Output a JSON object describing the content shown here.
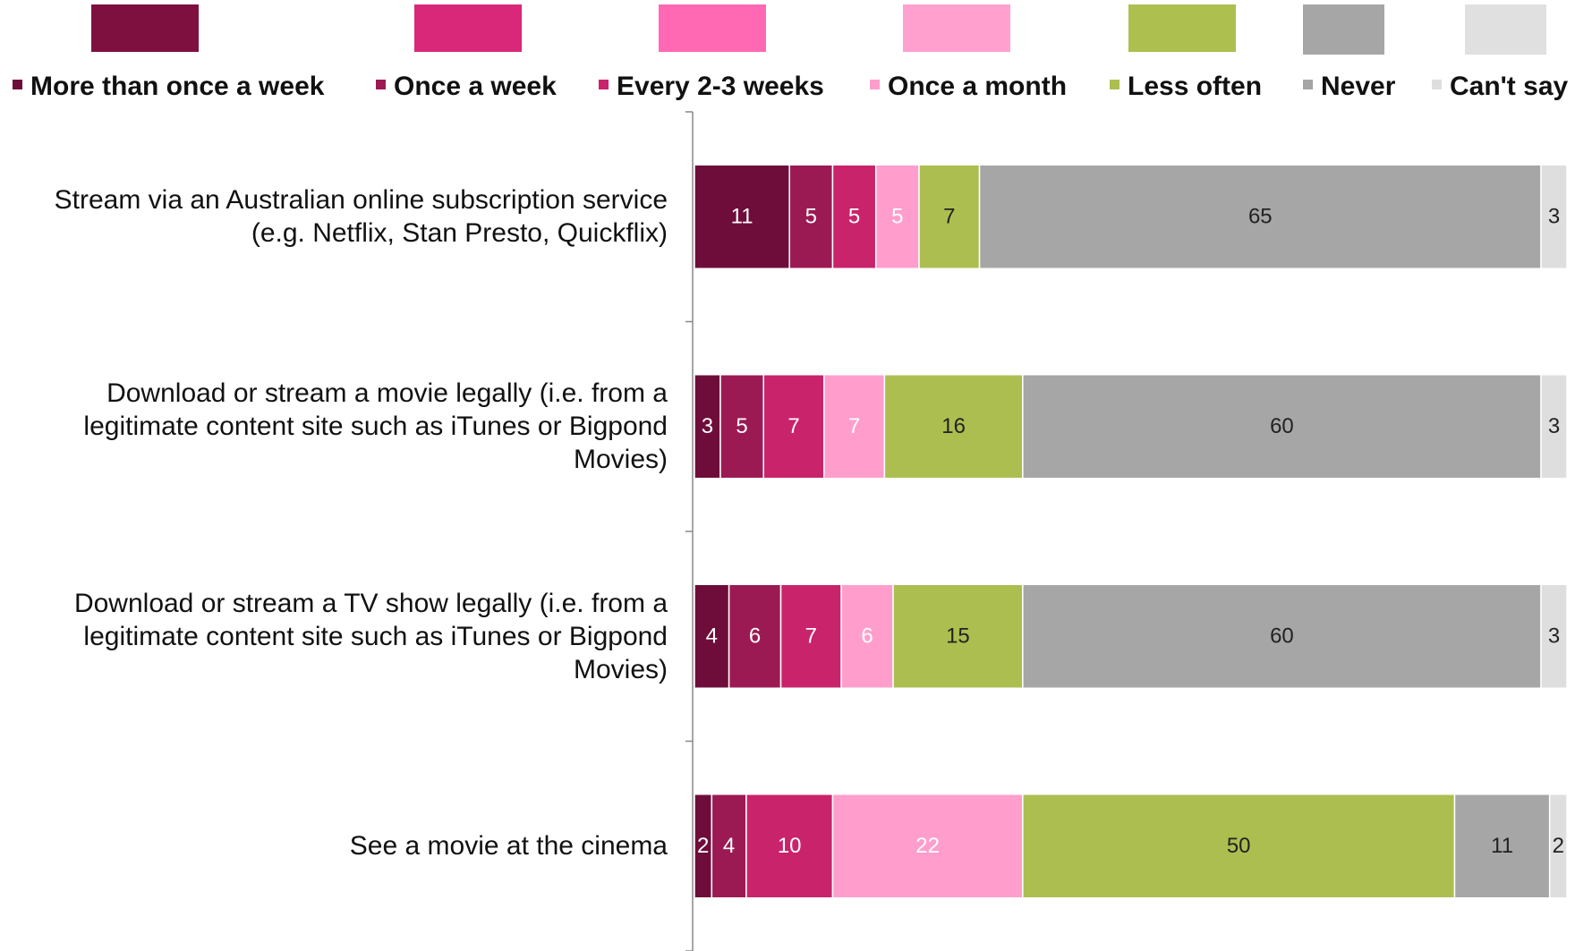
{
  "chart_data": {
    "type": "stacked-bar-horizontal",
    "categories": [
      "Stream via an Australian online subscription service\n(e.g. Netflix, Stan Presto, Quickflix)",
      "Download or stream a movie legally (i.e. from a\nlegitimate content site such as iTunes or Bigpond\nMovies)",
      "Download or stream a TV show legally (i.e. from a\nlegitimate content site such as iTunes or Bigpond\nMovies)",
      "See a movie at the cinema"
    ],
    "series": [
      {
        "name": "More than once a week",
        "color": "#6e0d3a",
        "values": [
          11,
          3,
          4,
          2
        ]
      },
      {
        "name": "Once a week",
        "color": "#9c1a53",
        "values": [
          5,
          5,
          6,
          4
        ]
      },
      {
        "name": "Every 2-3 weeks",
        "color": "#c9236c",
        "values": [
          5,
          7,
          7,
          10
        ]
      },
      {
        "name": "Once a month",
        "color": "#ff9ecd",
        "values": [
          5,
          7,
          6,
          22
        ]
      },
      {
        "name": "Less often",
        "color": "#adbe50",
        "values": [
          7,
          16,
          15,
          50
        ]
      },
      {
        "name": "Never",
        "color": "#a6a6a6",
        "values": [
          65,
          60,
          60,
          11
        ]
      },
      {
        "name": "Can't say",
        "color": "#dedede",
        "values": [
          3,
          3,
          3,
          2
        ]
      }
    ],
    "legend": "top"
  }
}
